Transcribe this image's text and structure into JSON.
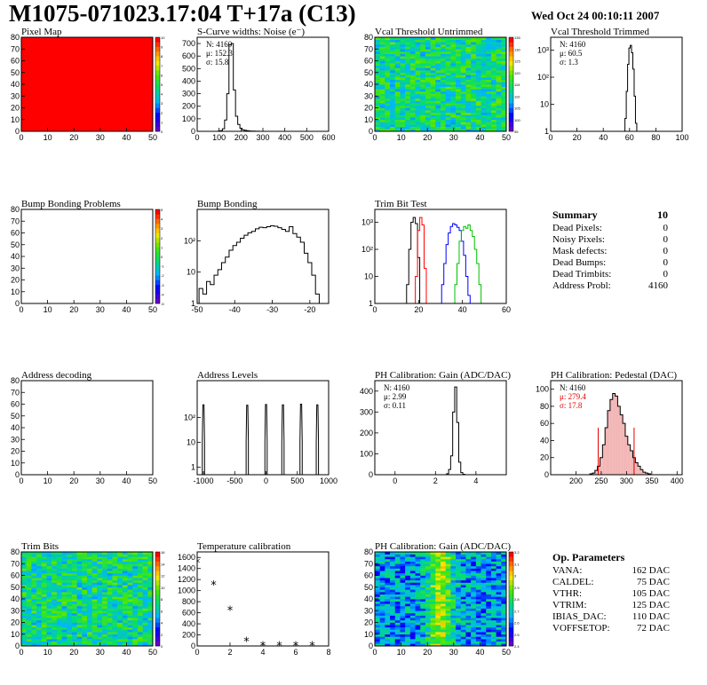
{
  "header": {
    "title": "M1075-071023.17:04 T+17a (C13)",
    "date": "Wed Oct 24 00:10:11 2007"
  },
  "chart_data": [
    {
      "id": "pixelmap",
      "type": "heatmap",
      "title": "Pixel Map",
      "xlim": [
        0,
        52
      ],
      "ylim": [
        0,
        80
      ],
      "xticks": [
        "0",
        "10",
        "20",
        "30",
        "40",
        "50"
      ],
      "yticks": [
        "0",
        "10",
        "20",
        "30",
        "40",
        "50",
        "60",
        "70",
        "80"
      ],
      "zticks": [
        "0",
        "1",
        "2",
        "3",
        "4",
        "5",
        "6",
        "7",
        "8",
        "9",
        "10"
      ],
      "fill": "uniform",
      "value": 10
    },
    {
      "id": "scurve",
      "type": "histogram",
      "title": "S-Curve widths: Noise (e⁻)",
      "xlim": [
        0,
        600
      ],
      "ylim": [
        0,
        750
      ],
      "log": false,
      "xticks": [
        "0",
        "100",
        "200",
        "300",
        "400",
        "500",
        "600"
      ],
      "yticks": [
        "0",
        "100",
        "200",
        "300",
        "400",
        "500",
        "600",
        "700"
      ],
      "stats": [
        "N: 4160",
        "μ: 152.3",
        "σ: 15.8"
      ],
      "x": [
        100,
        110,
        120,
        130,
        140,
        150,
        160,
        170,
        180,
        190,
        200,
        210,
        220,
        230,
        240,
        250,
        260,
        270,
        280,
        290,
        300
      ],
      "values": [
        2,
        5,
        20,
        90,
        300,
        690,
        700,
        330,
        120,
        55,
        25,
        12,
        8,
        5,
        3,
        2,
        2,
        1,
        1,
        0,
        0
      ]
    },
    {
      "id": "vcaluntrim",
      "type": "heatmap",
      "title": "Vcal Threshold Untrimmed",
      "xlim": [
        0,
        52
      ],
      "ylim": [
        0,
        80
      ],
      "xticks": [
        "0",
        "10",
        "20",
        "30",
        "40",
        "50"
      ],
      "yticks": [
        "0",
        "10",
        "20",
        "30",
        "40",
        "50",
        "60",
        "70",
        "80"
      ],
      "zticks": [
        "95",
        "100",
        "105",
        "110",
        "115",
        "120",
        "125",
        "130",
        "135"
      ],
      "fill": "gradient",
      "seed": 3
    },
    {
      "id": "vcaltrim",
      "type": "histogram",
      "title": "Vcal Threshold Trimmed",
      "xlim": [
        0,
        100
      ],
      "ylim": [
        1,
        3000
      ],
      "log": true,
      "xticks": [
        "0",
        "20",
        "40",
        "60",
        "80",
        "100"
      ],
      "yticks": [
        "1",
        "10",
        "10²",
        "10³"
      ],
      "stats": [
        "N: 4160",
        "μ: 60.5",
        "σ:  1.3"
      ],
      "x": [
        56,
        57,
        58,
        59,
        60,
        61,
        62,
        63,
        64,
        65
      ],
      "values": [
        1,
        3,
        30,
        300,
        1200,
        1500,
        800,
        200,
        20,
        2
      ]
    },
    {
      "id": "bumpproblems",
      "type": "heatmap",
      "title": "Bump Bonding Problems",
      "xlim": [
        0,
        52
      ],
      "ylim": [
        0,
        80
      ],
      "xticks": [
        "0",
        "10",
        "20",
        "30",
        "40",
        "50"
      ],
      "yticks": [
        "0",
        "10",
        "20",
        "30",
        "40",
        "50",
        "60",
        "70",
        "80"
      ],
      "zticks": [
        "-5",
        "-4",
        "-3",
        "-2",
        "-1",
        "0",
        "1",
        "2",
        "3",
        "4",
        "5"
      ],
      "fill": "empty"
    },
    {
      "id": "bumpbonding",
      "type": "histogram",
      "title": "Bump Bonding",
      "xlim": [
        -50,
        -15
      ],
      "ylim": [
        1,
        1000
      ],
      "log": true,
      "xticks": [
        "-50",
        "-40",
        "-30",
        "-20"
      ],
      "yticks": [
        "1",
        "10",
        "10²"
      ],
      "x": [
        -49,
        -48,
        -47,
        -46,
        -45,
        -44,
        -43,
        -42,
        -41,
        -40,
        -39,
        -38,
        -37,
        -36,
        -35,
        -34,
        -33,
        -32,
        -31,
        -30,
        -29,
        -28,
        -27,
        -26,
        -25,
        -24,
        -23,
        -22,
        -21,
        -20,
        -19,
        -18
      ],
      "values": [
        3,
        2,
        5,
        4,
        8,
        12,
        20,
        30,
        50,
        70,
        90,
        120,
        150,
        180,
        200,
        240,
        270,
        260,
        280,
        300,
        290,
        260,
        230,
        200,
        280,
        170,
        130,
        90,
        40,
        20,
        8,
        2
      ]
    },
    {
      "id": "trimbit",
      "type": "histogram",
      "title": "Trim Bit Test",
      "xlim": [
        0,
        60
      ],
      "ylim": [
        1,
        3000
      ],
      "log": true,
      "xticks": [
        "0",
        "20",
        "40",
        "60"
      ],
      "yticks": [
        "1",
        "10",
        "10²",
        "10³"
      ],
      "series": [
        {
          "color": "#000000",
          "x": [
            14,
            15,
            16,
            17,
            18,
            19,
            20,
            21
          ],
          "values": [
            1,
            5,
            100,
            1000,
            1500,
            900,
            50,
            1
          ]
        },
        {
          "color": "#ff0000",
          "x": [
            18,
            19,
            20,
            21,
            22,
            23,
            24
          ],
          "values": [
            1,
            10,
            500,
            1500,
            800,
            20,
            1
          ]
        },
        {
          "color": "#0000ff",
          "x": [
            30,
            31,
            32,
            33,
            34,
            35,
            36,
            37,
            38,
            39,
            40,
            41,
            42,
            43,
            44
          ],
          "values": [
            1,
            5,
            30,
            150,
            400,
            700,
            900,
            800,
            650,
            500,
            200,
            60,
            10,
            2,
            1
          ]
        },
        {
          "color": "#00c000",
          "x": [
            36,
            37,
            38,
            39,
            40,
            41,
            42,
            43,
            44,
            45,
            46,
            47,
            48,
            49
          ],
          "values": [
            1,
            5,
            30,
            200,
            500,
            700,
            600,
            800,
            500,
            300,
            100,
            30,
            5,
            1
          ]
        }
      ]
    },
    {
      "id": "addrdecode",
      "type": "heatmap",
      "title": "Address decoding",
      "xlim": [
        0,
        52
      ],
      "ylim": [
        0,
        80
      ],
      "xticks": [
        "0",
        "10",
        "20",
        "30",
        "40",
        "50"
      ],
      "yticks": [
        "0",
        "10",
        "20",
        "30",
        "40",
        "50",
        "60",
        "70",
        "80"
      ],
      "fill": "empty",
      "noscale": true
    },
    {
      "id": "addrlevels",
      "type": "histogram",
      "title": "Address Levels",
      "xlim": [
        -1100,
        1000
      ],
      "ylim": [
        0.5,
        3000
      ],
      "log": true,
      "xticks": [
        "-1000",
        "-500",
        "0",
        "500",
        "1000"
      ],
      "yticks": [
        "1",
        "10",
        "10²"
      ],
      "peaks": [
        [
          -1000,
          320
        ],
        [
          -300,
          310
        ],
        [
          0,
          330
        ],
        [
          270,
          320
        ],
        [
          560,
          340
        ],
        [
          820,
          320
        ]
      ]
    },
    {
      "id": "phgain",
      "type": "histogram",
      "title": "PH Calibration: Gain (ADC/DAC)",
      "xlim": [
        -1,
        5.5
      ],
      "ylim": [
        0,
        450
      ],
      "log": false,
      "xticks": [
        "0",
        "2",
        "4"
      ],
      "yticks": [
        "0",
        "100",
        "200",
        "300",
        "400"
      ],
      "stats": [
        "N: 4160",
        "μ: 2.99",
        "σ: 0.11"
      ],
      "x": [
        2.6,
        2.7,
        2.8,
        2.9,
        3.0,
        3.1,
        3.2,
        3.3,
        3.4
      ],
      "values": [
        5,
        25,
        90,
        300,
        420,
        250,
        60,
        10,
        2
      ]
    },
    {
      "id": "phped",
      "type": "histogram",
      "title": "PH Calibration: Pedestal (DAC)",
      "xlim": [
        150,
        410
      ],
      "ylim": [
        0,
        110
      ],
      "log": false,
      "xticks": [
        "200",
        "250",
        "300",
        "350",
        "400"
      ],
      "yticks": [
        "0",
        "20",
        "40",
        "60",
        "80",
        "100"
      ],
      "stats": [
        "N: 4160",
        "μ: 279.4",
        "σ: 17.8"
      ],
      "statsColors": [
        "#000",
        "#e00000",
        "#e00000"
      ],
      "x": [
        230,
        235,
        240,
        245,
        250,
        255,
        260,
        265,
        270,
        275,
        280,
        285,
        290,
        295,
        300,
        305,
        310,
        315,
        320,
        325,
        330,
        335,
        340,
        345
      ],
      "values": [
        1,
        2,
        5,
        10,
        20,
        35,
        55,
        75,
        88,
        95,
        92,
        80,
        70,
        60,
        45,
        35,
        28,
        20,
        14,
        10,
        6,
        3,
        2,
        1
      ],
      "markers": [
        244,
        315
      ]
    },
    {
      "id": "trimbits",
      "type": "heatmap",
      "title": "Trim Bits",
      "xlim": [
        0,
        52
      ],
      "ylim": [
        0,
        80
      ],
      "xticks": [
        "0",
        "10",
        "20",
        "30",
        "40",
        "50"
      ],
      "yticks": [
        "0",
        "10",
        "20",
        "30",
        "40",
        "50",
        "60",
        "70",
        "80"
      ],
      "zticks": [
        "0",
        "2",
        "4",
        "6",
        "8",
        "10",
        "12",
        "14",
        "16"
      ],
      "fill": "gradient",
      "seed": 7
    },
    {
      "id": "tempcal",
      "type": "scatter",
      "title": "Temperature calibration",
      "xlim": [
        0,
        8
      ],
      "ylim": [
        0,
        1700
      ],
      "log": false,
      "xticks": [
        "0",
        "2",
        "4",
        "6",
        "8"
      ],
      "yticks": [
        "0",
        "200",
        "400",
        "600",
        "800",
        "1000",
        "1200",
        "1400",
        "1600"
      ],
      "x": [
        0,
        1,
        2,
        3,
        4,
        5,
        6,
        7
      ],
      "values": [
        1510,
        1110,
        650,
        90,
        10,
        5,
        5,
        5
      ]
    },
    {
      "id": "phgain2",
      "type": "heatmap",
      "title": "PH Calibration: Gain (ADC/DAC)",
      "xlim": [
        0,
        52
      ],
      "ylim": [
        0,
        80
      ],
      "xticks": [
        "0",
        "10",
        "20",
        "30",
        "40",
        "50"
      ],
      "yticks": [
        "0",
        "10",
        "20",
        "30",
        "40",
        "50",
        "60",
        "70",
        "80"
      ],
      "zticks": [
        "2.4",
        "2.5",
        "2.6",
        "2.7",
        "2.8",
        "2.9",
        "3",
        "3.1",
        "3.2"
      ],
      "fill": "gradient",
      "seed": 11,
      "stripe": true
    }
  ],
  "summary": {
    "title": "Summary",
    "count": "10",
    "rows": [
      [
        "Dead Pixels:",
        "0"
      ],
      [
        "Noisy Pixels:",
        "0"
      ],
      [
        "Mask defects:",
        "0"
      ],
      [
        "Dead Bumps:",
        "0"
      ],
      [
        "Dead Trimbits:",
        "0"
      ],
      [
        "Address Probl:",
        "4160"
      ]
    ]
  },
  "params": {
    "title": "Op. Parameters",
    "rows": [
      [
        "VANA:",
        "162 DAC"
      ],
      [
        "CALDEL:",
        "75 DAC"
      ],
      [
        "VTHR:",
        "105 DAC"
      ],
      [
        "VTRIM:",
        "125 DAC"
      ],
      [
        "IBIAS_DAC:",
        "110 DAC"
      ],
      [
        "VOFFSETOP:",
        "72 DAC"
      ]
    ]
  }
}
